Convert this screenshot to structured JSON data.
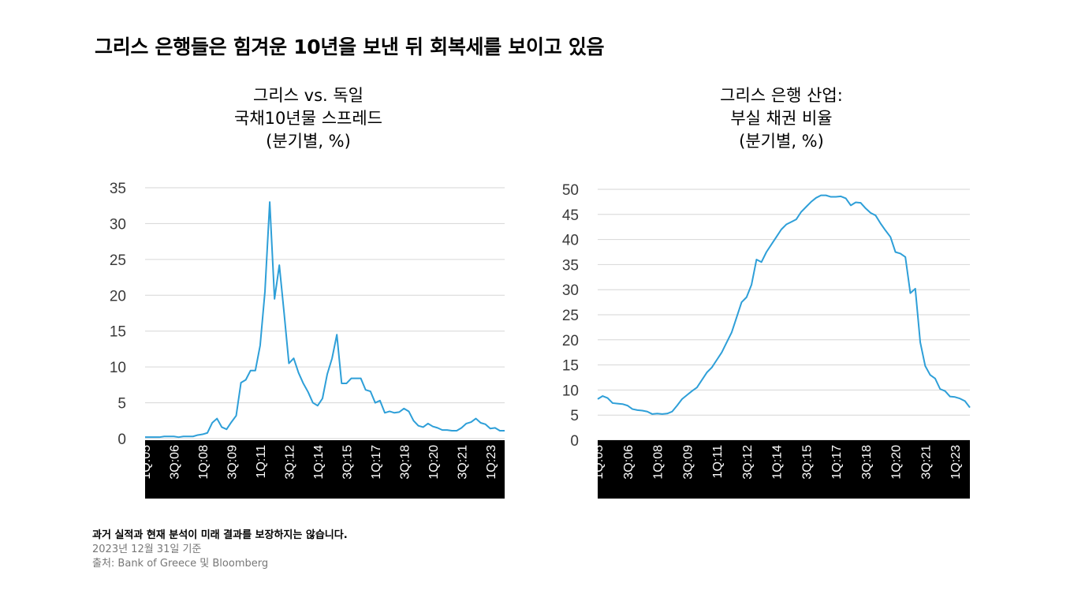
{
  "page": {
    "title": "그리스 은행들은 힘겨운 10년을 보낸 뒤 회복세를 보이고 있음",
    "disclaimer": "과거 실적과 현재 분석이 미래 결과를 보장하지는 않습니다.",
    "date_note": "2023년 12월 31일 기준",
    "source": "출처: Bank of Greece 및 Bloomberg"
  },
  "chart_data": [
    {
      "type": "line",
      "title_lines": [
        "그리스 vs. 독일",
        "국채10년물 스프레드",
        "(분기별, %)"
      ],
      "color": "#2e9fd8",
      "ylim": [
        0,
        35
      ],
      "yticks": [
        0,
        5,
        10,
        15,
        20,
        25,
        30,
        35
      ],
      "grid": true,
      "x_tick_labels": [
        "1Q:05",
        "3Q:06",
        "1Q:08",
        "3Q:09",
        "1Q:11",
        "3Q:12",
        "1Q:14",
        "3Q:15",
        "1Q:17",
        "3Q:18",
        "1Q:20",
        "3Q:21",
        "1Q:23"
      ],
      "x": [
        "1Q:05",
        "2Q:05",
        "3Q:05",
        "4Q:05",
        "1Q:06",
        "2Q:06",
        "3Q:06",
        "4Q:06",
        "1Q:07",
        "2Q:07",
        "3Q:07",
        "4Q:07",
        "1Q:08",
        "2Q:08",
        "3Q:08",
        "4Q:08",
        "1Q:09",
        "2Q:09",
        "3Q:09",
        "4Q:09",
        "1Q:10",
        "2Q:10",
        "3Q:10",
        "4Q:10",
        "1Q:11",
        "2Q:11",
        "3Q:11",
        "4Q:11",
        "1Q:12",
        "2Q:12",
        "3Q:12",
        "4Q:12",
        "1Q:13",
        "2Q:13",
        "3Q:13",
        "4Q:13",
        "1Q:14",
        "2Q:14",
        "3Q:14",
        "4Q:14",
        "1Q:15",
        "2Q:15",
        "3Q:15",
        "4Q:15",
        "1Q:16",
        "2Q:16",
        "3Q:16",
        "4Q:16",
        "1Q:17",
        "2Q:17",
        "3Q:17",
        "4Q:17",
        "1Q:18",
        "2Q:18",
        "3Q:18",
        "4Q:18",
        "1Q:19",
        "2Q:19",
        "3Q:19",
        "4Q:19",
        "1Q:20",
        "2Q:20",
        "3Q:20",
        "4Q:20",
        "1Q:21",
        "2Q:21",
        "3Q:21",
        "4Q:21",
        "1Q:22",
        "2Q:22",
        "3Q:22",
        "4Q:22",
        "1Q:23",
        "2Q:23",
        "3Q:23",
        "4Q:23"
      ],
      "values": [
        0.2,
        0.2,
        0.2,
        0.2,
        0.3,
        0.3,
        0.3,
        0.2,
        0.3,
        0.3,
        0.3,
        0.5,
        0.6,
        0.8,
        2.2,
        2.8,
        1.6,
        1.3,
        2.3,
        3.2,
        7.8,
        8.2,
        9.5,
        9.5,
        13.0,
        20.5,
        33.0,
        19.5,
        24.2,
        17.5,
        10.5,
        11.2,
        9.2,
        7.7,
        6.5,
        5.0,
        4.6,
        5.6,
        9.0,
        11.2,
        14.5,
        7.7,
        7.7,
        8.4,
        8.4,
        8.4,
        6.8,
        6.6,
        5.0,
        5.3,
        3.6,
        3.8,
        3.6,
        3.7,
        4.2,
        3.8,
        2.5,
        1.8,
        1.6,
        2.1,
        1.7,
        1.5,
        1.2,
        1.2,
        1.1,
        1.1,
        1.5,
        2.1,
        2.3,
        2.8,
        2.2,
        2.0,
        1.4,
        1.5,
        1.1,
        1.1
      ]
    },
    {
      "type": "line",
      "title_lines": [
        "그리스 은행 산업:",
        "부실 채권 비율",
        "(분기별, %)"
      ],
      "color": "#2e9fd8",
      "ylim": [
        0,
        50
      ],
      "yticks": [
        0,
        5,
        10,
        15,
        20,
        25,
        30,
        35,
        40,
        45,
        50
      ],
      "grid": true,
      "x_tick_labels": [
        "1Q:05",
        "3Q:06",
        "1Q:08",
        "3Q:09",
        "1Q:11",
        "3Q:12",
        "1Q:14",
        "3Q:15",
        "1Q:17",
        "3Q:18",
        "1Q:20",
        "3Q:21",
        "1Q:23"
      ],
      "x": [
        "1Q:05",
        "2Q:05",
        "3Q:05",
        "4Q:05",
        "1Q:06",
        "2Q:06",
        "3Q:06",
        "4Q:06",
        "1Q:07",
        "2Q:07",
        "3Q:07",
        "4Q:07",
        "1Q:08",
        "2Q:08",
        "3Q:08",
        "4Q:08",
        "1Q:09",
        "2Q:09",
        "3Q:09",
        "4Q:09",
        "1Q:10",
        "2Q:10",
        "3Q:10",
        "4Q:10",
        "1Q:11",
        "2Q:11",
        "3Q:11",
        "4Q:11",
        "1Q:12",
        "2Q:12",
        "3Q:12",
        "4Q:12",
        "1Q:13",
        "2Q:13",
        "3Q:13",
        "4Q:13",
        "1Q:14",
        "2Q:14",
        "3Q:14",
        "4Q:14",
        "1Q:15",
        "2Q:15",
        "3Q:15",
        "4Q:15",
        "1Q:16",
        "2Q:16",
        "3Q:16",
        "4Q:16",
        "1Q:17",
        "2Q:17",
        "3Q:17",
        "4Q:17",
        "1Q:18",
        "2Q:18",
        "3Q:18",
        "4Q:18",
        "1Q:19",
        "2Q:19",
        "3Q:19",
        "4Q:19",
        "1Q:20",
        "2Q:20",
        "3Q:20",
        "4Q:20",
        "1Q:21",
        "2Q:21",
        "3Q:21",
        "4Q:21",
        "1Q:22",
        "2Q:22",
        "3Q:22",
        "4Q:22",
        "1Q:23",
        "2Q:23",
        "3Q:23",
        "4Q:23"
      ],
      "values": [
        8.2,
        8.8,
        8.4,
        7.4,
        7.3,
        7.2,
        6.9,
        6.2,
        6.0,
        5.9,
        5.7,
        5.2,
        5.3,
        5.2,
        5.3,
        5.7,
        6.9,
        8.2,
        9.0,
        9.8,
        10.5,
        12.0,
        13.5,
        14.5,
        16.0,
        17.5,
        19.5,
        21.5,
        24.5,
        27.5,
        28.5,
        31.0,
        36.0,
        35.5,
        37.5,
        39.0,
        40.5,
        42.0,
        43.0,
        43.5,
        44.0,
        45.5,
        46.5,
        47.5,
        48.3,
        48.8,
        48.8,
        48.5,
        48.5,
        48.6,
        48.2,
        46.8,
        47.4,
        47.3,
        46.2,
        45.3,
        44.8,
        43.2,
        41.8,
        40.5,
        37.5,
        37.2,
        36.5,
        29.3,
        30.2,
        19.5,
        14.8,
        13.0,
        12.3,
        10.2,
        9.8,
        8.7,
        8.6,
        8.3,
        7.8,
        6.5
      ]
    }
  ]
}
